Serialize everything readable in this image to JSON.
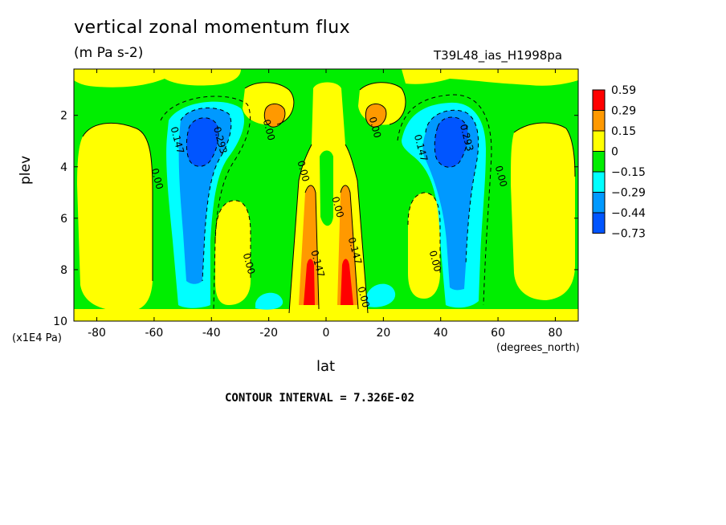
{
  "chart_data": {
    "type": "heatmap",
    "title": "vertical zonal momentum flux",
    "units": "(m Pa s-2)",
    "dataset_label": "T39L48_ias_H1998pa",
    "xlabel": "lat",
    "x_unit": "(degrees_north)",
    "ylabel": "plev",
    "y_unit": "(x1E4 Pa)",
    "xlim": [
      -88,
      88
    ],
    "ylim": [
      10,
      0.2
    ],
    "x_ticks": [
      "-80",
      "-60",
      "-40",
      "-20",
      "0",
      "20",
      "40",
      "60",
      "80"
    ],
    "x_tick_values": [
      -80,
      -60,
      -40,
      -20,
      0,
      20,
      40,
      60,
      80
    ],
    "y_ticks": [
      "2",
      "4",
      "6",
      "8",
      "10"
    ],
    "y_tick_values": [
      2,
      4,
      6,
      8,
      10
    ],
    "contour_interval_text": "CONTOUR INTERVAL = 7.326E-02",
    "legend": {
      "labels": [
        "0.59",
        "0.29",
        "0.15",
        "0",
        "−0.15",
        "−0.29",
        "−0.44",
        "−0.73"
      ],
      "colors": [
        "#ff0000",
        "#ff9900",
        "#ffff00",
        "#00ee00",
        "#00ffff",
        "#0099ff",
        "#0055ff"
      ]
    },
    "contour_labels": [
      {
        "text": "0.147",
        "lat": -53,
        "plev": 3.0
      },
      {
        "text": "0.293",
        "lat": -38,
        "plev": 3.0
      },
      {
        "text": "0.00",
        "lat": -60,
        "plev": 4.5
      },
      {
        "text": "0.00",
        "lat": -28,
        "plev": 7.8
      },
      {
        "text": "0.00",
        "lat": -21,
        "plev": 2.6
      },
      {
        "text": "0.00",
        "lat": -9,
        "plev": 4.2
      },
      {
        "text": "0.147",
        "lat": -4,
        "plev": 7.8
      },
      {
        "text": "0.00",
        "lat": 3,
        "plev": 5.6
      },
      {
        "text": "0.147",
        "lat": 9,
        "plev": 7.3
      },
      {
        "text": "0.00",
        "lat": 12,
        "plev": 9.1
      },
      {
        "text": "0.00",
        "lat": 16,
        "plev": 2.5
      },
      {
        "text": "0.147",
        "lat": 32,
        "plev": 3.3
      },
      {
        "text": "0.293",
        "lat": 48,
        "plev": 2.9
      },
      {
        "text": "0.00",
        "lat": 37,
        "plev": 7.7
      },
      {
        "text": "0.00",
        "lat": 60,
        "plev": 4.4
      }
    ]
  }
}
